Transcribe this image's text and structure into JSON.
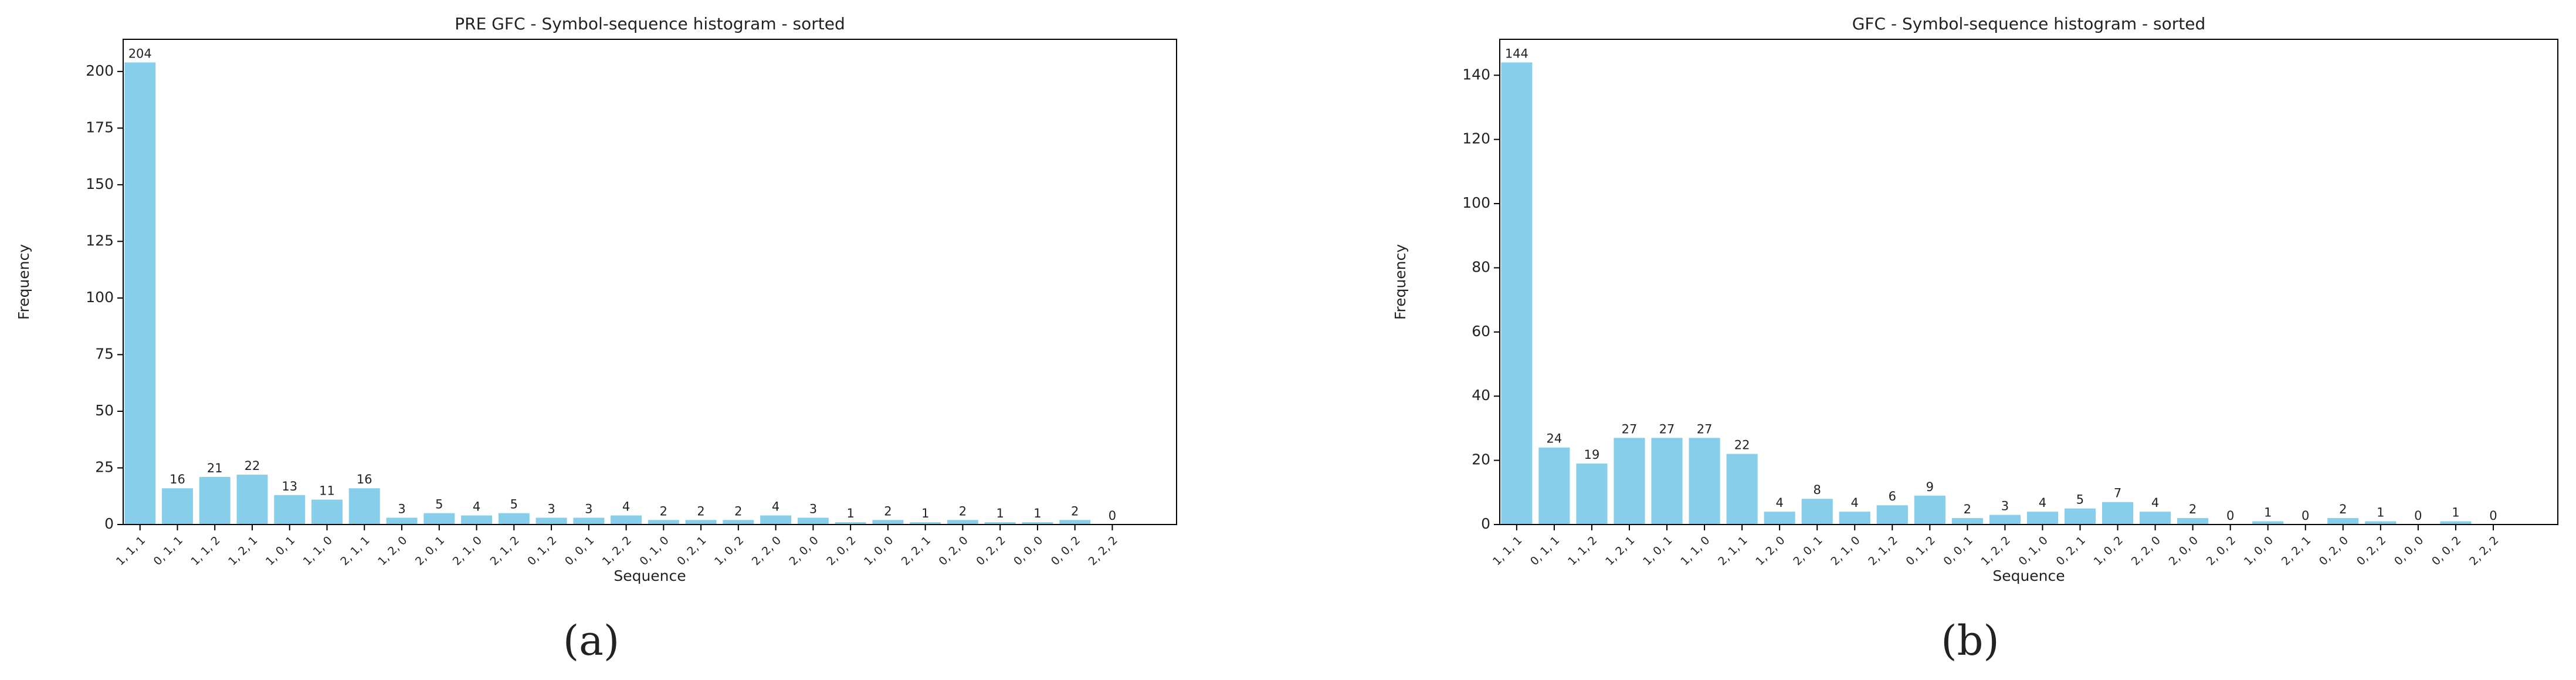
{
  "chart_data": [
    {
      "type": "bar",
      "title": "PRE GFC - Symbol-sequence histogram - sorted",
      "x_label": "Sequence",
      "y_label": "Frequency",
      "caption": "(a)",
      "categories": [
        "1, 1, 1",
        "0, 1, 1",
        "1, 1, 2",
        "1, 2, 1",
        "1, 0, 1",
        "1, 1, 0",
        "2, 1, 1",
        "1, 2, 0",
        "2, 0, 1",
        "2, 1, 0",
        "2, 1, 2",
        "0, 1, 2",
        "0, 0, 1",
        "1, 2, 2",
        "0, 1, 0",
        "0, 2, 1",
        "1, 0, 2",
        "2, 2, 0",
        "2, 0, 0",
        "2, 0, 2",
        "1, 0, 0",
        "2, 2, 1",
        "0, 2, 0",
        "0, 2, 2",
        "0, 0, 0",
        "0, 0, 2",
        "2, 2, 2"
      ],
      "values": [
        204,
        16,
        21,
        22,
        13,
        11,
        16,
        3,
        5,
        4,
        5,
        3,
        3,
        4,
        2,
        2,
        2,
        4,
        3,
        1,
        2,
        1,
        2,
        1,
        1,
        2,
        0
      ],
      "color": "#87ceeb",
      "ylim": [
        0,
        214.2
      ],
      "yticks": [
        0,
        25,
        50,
        75,
        100,
        125,
        150,
        175,
        200
      ],
      "grid": false
    },
    {
      "type": "bar",
      "title": "GFC - Symbol-sequence histogram - sorted",
      "x_label": "Sequence",
      "y_label": "Frequency",
      "caption": "(b)",
      "categories": [
        "1, 1, 1",
        "0, 1, 1",
        "1, 1, 2",
        "1, 2, 1",
        "1, 0, 1",
        "1, 1, 0",
        "2, 1, 1",
        "1, 2, 0",
        "2, 0, 1",
        "2, 1, 0",
        "2, 1, 2",
        "0, 1, 2",
        "0, 0, 1",
        "1, 2, 2",
        "0, 1, 0",
        "0, 2, 1",
        "1, 0, 2",
        "2, 2, 0",
        "2, 0, 0",
        "2, 0, 2",
        "1, 0, 0",
        "2, 2, 1",
        "0, 2, 0",
        "0, 2, 2",
        "0, 0, 0",
        "0, 0, 2",
        "2, 2, 2"
      ],
      "values": [
        144,
        24,
        19,
        27,
        27,
        27,
        22,
        4,
        8,
        4,
        6,
        9,
        2,
        3,
        4,
        5,
        7,
        4,
        2,
        0,
        1,
        0,
        2,
        1,
        0,
        1,
        0
      ],
      "color": "#87ceeb",
      "ylim": [
        0,
        151.2
      ],
      "yticks": [
        0,
        20,
        40,
        60,
        80,
        100,
        120,
        140
      ],
      "grid": false
    }
  ]
}
